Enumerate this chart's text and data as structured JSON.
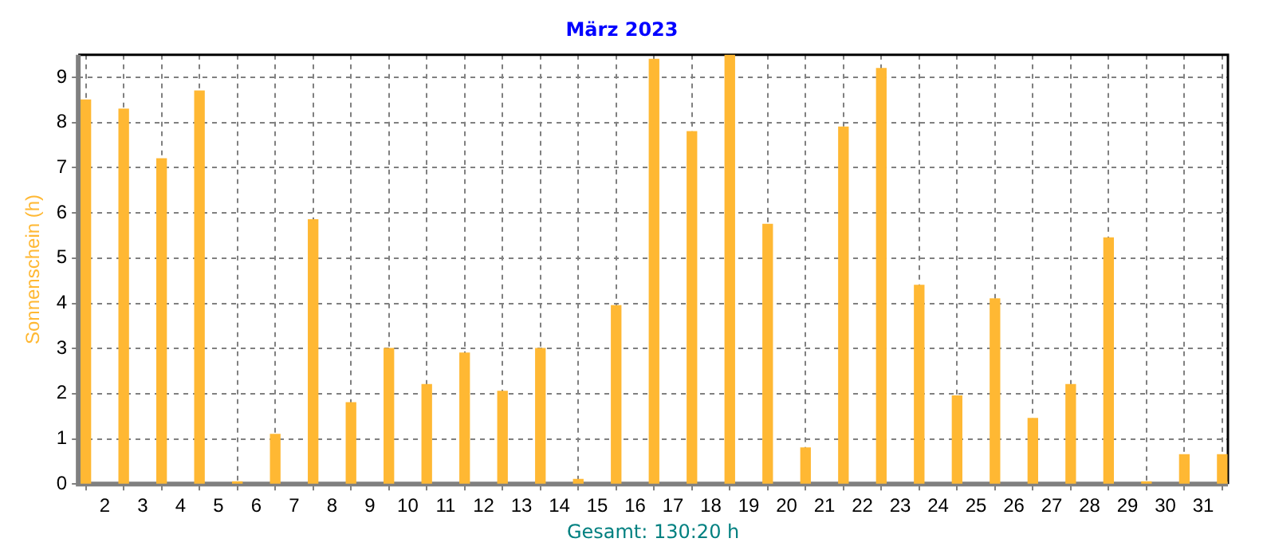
{
  "chart_data": {
    "type": "bar",
    "title": "März 2023",
    "ylabel": "Sonnenschein (h)",
    "annotations": [
      "Gesamt: 130:20 h"
    ],
    "x": [
      1.5,
      2.5,
      3.5,
      4.5,
      5.5,
      6.5,
      7.5,
      8.5,
      9.5,
      10.5,
      11.5,
      12.5,
      13.5,
      14.5,
      15.5,
      16.5,
      17.5,
      18.5,
      19.5,
      20.5,
      21.5,
      22.5,
      23.5,
      24.5,
      25.5,
      26.5,
      27.5,
      28.5,
      29.5,
      30.5,
      31.5
    ],
    "values": [
      8.5,
      8.3,
      7.2,
      8.7,
      0.05,
      1.1,
      5.85,
      1.8,
      3.0,
      2.2,
      2.9,
      2.05,
      3.0,
      0.1,
      3.95,
      9.4,
      7.8,
      9.5,
      5.75,
      0.8,
      7.9,
      9.2,
      4.4,
      1.95,
      4.1,
      1.45,
      2.2,
      5.45,
      0.05,
      0.65,
      0.65
    ],
    "color": "#ffb833",
    "xlim": [
      1.3,
      31.65
    ],
    "xticks": [
      2,
      3,
      4,
      5,
      6,
      7,
      8,
      9,
      10,
      11,
      12,
      13,
      14,
      15,
      16,
      17,
      18,
      19,
      20,
      21,
      22,
      23,
      24,
      25,
      26,
      27,
      28,
      29,
      30,
      31
    ],
    "ylim": [
      0,
      9.5
    ],
    "yticks": [
      0,
      1,
      2,
      3,
      4,
      5,
      6,
      7,
      8,
      9
    ],
    "grid": true,
    "legend": false
  }
}
